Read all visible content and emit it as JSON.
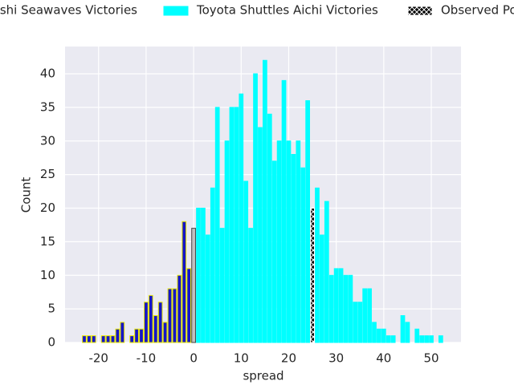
{
  "chart_data": {
    "type": "bar",
    "xlabel": "spread",
    "ylabel": "Count",
    "xlim": [
      -27.05,
      56.25
    ],
    "ylim": [
      0,
      44.06
    ],
    "xticks": [
      -20,
      -10,
      0,
      10,
      20,
      30,
      40,
      50
    ],
    "yticks": [
      0,
      5,
      10,
      15,
      20,
      25,
      30,
      35,
      40
    ],
    "grid": true,
    "background": "#eaeaf2",
    "bar_width": 0.8,
    "series": [
      {
        "name": "Kamaishi Seawaves Victories",
        "color": "#1515c8",
        "edgecolor": "#e8e800",
        "x": [
          -23,
          -22,
          -21,
          -19,
          -18,
          -17,
          -16,
          -15,
          -13,
          -12,
          -11,
          -10,
          -9,
          -8,
          -7,
          -6,
          -5,
          -4,
          -3,
          -2,
          -1
        ],
        "values": [
          1,
          1,
          1,
          1,
          1,
          1,
          2,
          3,
          1,
          2,
          2,
          6,
          7,
          4,
          6,
          3,
          8,
          8,
          10,
          18,
          11
        ]
      },
      {
        "color": "#c0c0c0",
        "edgecolor": "#444444",
        "x": [
          0
        ],
        "values": [
          17
        ]
      },
      {
        "name": "Toyota Shuttles Aichi Victories",
        "color": "#00ffff",
        "edgecolor": "#00ffff",
        "x": [
          1,
          2,
          3,
          4,
          5,
          6,
          7,
          8,
          9,
          10,
          11,
          12,
          13,
          14,
          15,
          16,
          17,
          18,
          19,
          20,
          21,
          22,
          23,
          24,
          26,
          27,
          28,
          29,
          30,
          31,
          32,
          33,
          34,
          35,
          36,
          37,
          38,
          39,
          40,
          41,
          42,
          44,
          45,
          47,
          48,
          49,
          50,
          52
        ],
        "values": [
          20,
          20,
          16,
          23,
          35,
          17,
          30,
          35,
          35,
          37,
          24,
          17,
          40,
          32,
          42,
          34,
          27,
          30,
          39,
          30,
          28,
          30,
          26,
          36,
          23,
          16,
          21,
          10,
          11,
          11,
          10,
          10,
          6,
          6,
          8,
          8,
          3,
          2,
          2,
          1,
          1,
          4,
          3,
          2,
          1,
          1,
          1,
          1
        ]
      },
      {
        "name": "Observed Point",
        "color": "#000000",
        "edgecolor": "#ffffff",
        "hatch": true,
        "x": [
          25
        ],
        "values": [
          20
        ]
      }
    ]
  }
}
